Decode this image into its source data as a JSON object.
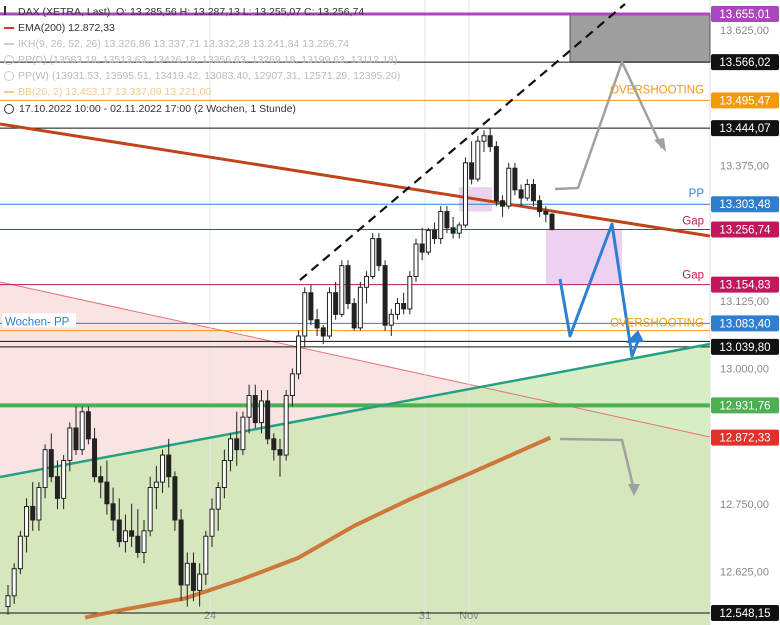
{
  "header": {
    "title": "DAX (XETRA, Last)",
    "ohlc": "O: 13.285,56  H: 13.287,13  L: 13.255,07  C: 13.256,74",
    "indicators": [
      {
        "label": "EMA(200)  12.872,33",
        "color": "#e0312b"
      },
      {
        "label": "IKH(9, 26, 52, 26)  13.326,86  13.337,71  13.332,28  13.241,84  13.256,74",
        "color": "#bbbbbb"
      },
      {
        "label": "PP(D)  (13583.18, 13513.63, 13426.18, 13356.63, 13269.18, 13199.63, 13112.18)",
        "color": "#bbbbbb"
      },
      {
        "label": "PP(W)  (13931.53, 13595.51, 13419.42, 13083.40, 12907.31, 12571.29, 12395.20)",
        "color": "#bbbbbb"
      },
      {
        "label": "BB(20, 2)  13.453,17  13.337,09  13.221,00",
        "color": "#f3c98c"
      }
    ],
    "range": "17.10.2022 10:00 - 02.11.2022 17:00   (2 Wochen, 1 Stunde)"
  },
  "chart_data": {
    "type": "candlestick",
    "ylim": [
      12540,
      13690
    ],
    "y_ticks": [
      "13.625,00",
      "13.375,00",
      "13.125,00",
      "13.000,00",
      "12.750,00",
      "12.625,00"
    ],
    "y_tick_values": [
      13625,
      13375,
      13125,
      13000,
      12750,
      12625
    ],
    "x_ticks": [
      "24",
      "31",
      "Nov"
    ],
    "price_tags": [
      {
        "value": 13655.01,
        "label": "13.655,01",
        "color": "#ab47bc"
      },
      {
        "value": 13566.02,
        "label": "13.566,02",
        "color": "#111111"
      },
      {
        "value": 13495.47,
        "label": "13.495,47",
        "color": "#f29a0e"
      },
      {
        "value": 13444.07,
        "label": "13.444,07",
        "color": "#111111"
      },
      {
        "value": 13303.48,
        "label": "13.303,48",
        "color": "#2f7fd1"
      },
      {
        "value": 13256.74,
        "label": "13.256,74",
        "color": "#c2185b"
      },
      {
        "value": 13154.83,
        "label": "13.154,83",
        "color": "#c2185b"
      },
      {
        "value": 13083.4,
        "label": "13.083,40",
        "color": "#2f7fd1"
      },
      {
        "value": 13039.8,
        "label": "13.039,80",
        "color": "#111111"
      },
      {
        "value": 12931.76,
        "label": "12.931,76",
        "color": "#4caf50"
      },
      {
        "value": 12872.33,
        "label": "12.872,33",
        "color": "#e0312b"
      },
      {
        "value": 12548.15,
        "label": "12.548,15",
        "color": "#111111"
      }
    ],
    "annotations": {
      "overshooting_upper": "OVERSHOOTING",
      "overshooting_lower": "OVERSHOOTING",
      "pp": "PP",
      "gap_upper": "Gap",
      "gap_lower": "Gap",
      "wochen_pp": "Wochen- PP"
    },
    "candles": [
      [
        12560,
        12600,
        12545,
        12580
      ],
      [
        12580,
        12640,
        12565,
        12630
      ],
      [
        12630,
        12700,
        12620,
        12690
      ],
      [
        12690,
        12760,
        12660,
        12745
      ],
      [
        12745,
        12790,
        12700,
        12720
      ],
      [
        12720,
        12790,
        12700,
        12780
      ],
      [
        12780,
        12860,
        12760,
        12850
      ],
      [
        12850,
        12880,
        12790,
        12800
      ],
      [
        12800,
        12830,
        12740,
        12760
      ],
      [
        12760,
        12840,
        12740,
        12830
      ],
      [
        12830,
        12900,
        12810,
        12890
      ],
      [
        12890,
        12930,
        12840,
        12850
      ],
      [
        12850,
        12930,
        12840,
        12920
      ],
      [
        12920,
        12930,
        12860,
        12870
      ],
      [
        12870,
        12890,
        12790,
        12800
      ],
      [
        12800,
        12820,
        12760,
        12790
      ],
      [
        12790,
        12830,
        12730,
        12750
      ],
      [
        12750,
        12780,
        12700,
        12720
      ],
      [
        12720,
        12760,
        12670,
        12680
      ],
      [
        12680,
        12730,
        12660,
        12700
      ],
      [
        12700,
        12750,
        12670,
        12690
      ],
      [
        12690,
        12740,
        12650,
        12660
      ],
      [
        12660,
        12720,
        12640,
        12700
      ],
      [
        12700,
        12800,
        12690,
        12780
      ],
      [
        12780,
        12820,
        12740,
        12790
      ],
      [
        12790,
        12850,
        12770,
        12840
      ],
      [
        12840,
        12870,
        12780,
        12800
      ],
      [
        12800,
        12810,
        12700,
        12720
      ],
      [
        12720,
        12740,
        12570,
        12600
      ],
      [
        12600,
        12660,
        12560,
        12640
      ],
      [
        12640,
        12660,
        12570,
        12590
      ],
      [
        12590,
        12640,
        12560,
        12620
      ],
      [
        12620,
        12700,
        12600,
        12690
      ],
      [
        12690,
        12760,
        12670,
        12740
      ],
      [
        12740,
        12790,
        12700,
        12780
      ],
      [
        12780,
        12850,
        12760,
        12830
      ],
      [
        12830,
        12880,
        12810,
        12870
      ],
      [
        12870,
        12920,
        12820,
        12850
      ],
      [
        12850,
        12920,
        12840,
        12910
      ],
      [
        12910,
        12970,
        12880,
        12950
      ],
      [
        12950,
        12970,
        12890,
        12900
      ],
      [
        12900,
        12960,
        12880,
        12940
      ],
      [
        12940,
        12960,
        12860,
        12870
      ],
      [
        12870,
        12880,
        12830,
        12850
      ],
      [
        12850,
        12870,
        12800,
        12840
      ],
      [
        12840,
        12960,
        12830,
        12950
      ],
      [
        12950,
        13000,
        12930,
        12990
      ],
      [
        12990,
        13070,
        12980,
        13060
      ],
      [
        13060,
        13150,
        13040,
        13140
      ],
      [
        13140,
        13155,
        13080,
        13090
      ],
      [
        13090,
        13110,
        13060,
        13075
      ],
      [
        13075,
        13080,
        13045,
        13060
      ],
      [
        13060,
        13150,
        13055,
        13140
      ],
      [
        13140,
        13160,
        13090,
        13100
      ],
      [
        13100,
        13200,
        13095,
        13190
      ],
      [
        13190,
        13200,
        13110,
        13120
      ],
      [
        13120,
        13130,
        13070,
        13075
      ],
      [
        13075,
        13160,
        13070,
        13150
      ],
      [
        13150,
        13180,
        13120,
        13170
      ],
      [
        13170,
        13250,
        13165,
        13240
      ],
      [
        13240,
        13250,
        13180,
        13190
      ],
      [
        13190,
        13200,
        13070,
        13080
      ],
      [
        13080,
        13110,
        13060,
        13100
      ],
      [
        13100,
        13130,
        13090,
        13120
      ],
      [
        13120,
        13140,
        13100,
        13110
      ],
      [
        13110,
        13180,
        13100,
        13170
      ],
      [
        13170,
        13240,
        13160,
        13230
      ],
      [
        13230,
        13260,
        13200,
        13215
      ],
      [
        13215,
        13260,
        13210,
        13255
      ],
      [
        13255,
        13270,
        13230,
        13240
      ],
      [
        13240,
        13300,
        13230,
        13290
      ],
      [
        13290,
        13300,
        13250,
        13260
      ],
      [
        13260,
        13280,
        13240,
        13250
      ],
      [
        13250,
        13270,
        13240,
        13265
      ],
      [
        13265,
        13390,
        13260,
        13380
      ],
      [
        13380,
        13420,
        13340,
        13350
      ],
      [
        13350,
        13430,
        13345,
        13420
      ],
      [
        13420,
        13440,
        13400,
        13430
      ],
      [
        13430,
        13445,
        13400,
        13410
      ],
      [
        13410,
        13420,
        13300,
        13310
      ],
      [
        13310,
        13320,
        13280,
        13300
      ],
      [
        13300,
        13380,
        13295,
        13370
      ],
      [
        13370,
        13380,
        13320,
        13330
      ],
      [
        13330,
        13340,
        13300,
        13315
      ],
      [
        13315,
        13350,
        13310,
        13340
      ],
      [
        13340,
        13350,
        13300,
        13310
      ],
      [
        13310,
        13320,
        13280,
        13290
      ],
      [
        13290,
        13300,
        13270,
        13285
      ],
      [
        13285,
        13287,
        13255,
        13257
      ]
    ],
    "ema200": [
      [
        0.12,
        12540
      ],
      [
        0.18,
        12556
      ],
      [
        0.26,
        12575
      ],
      [
        0.34,
        12610
      ],
      [
        0.42,
        12650
      ],
      [
        0.5,
        12710
      ],
      [
        0.58,
        12760
      ],
      [
        0.66,
        12805
      ],
      [
        0.72,
        12840
      ],
      [
        0.775,
        12872
      ]
    ]
  }
}
